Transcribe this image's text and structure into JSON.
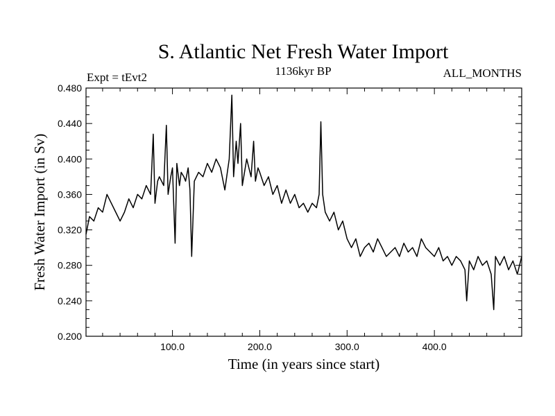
{
  "chart_data": {
    "type": "line",
    "title": "S. Atlantic Net Fresh Water Import",
    "subtitle_left": "Expt = tEvt2",
    "subtitle_center": "1136kyr BP",
    "subtitle_right": "ALL_MONTHS",
    "xlabel": "Time (in years since start)",
    "ylabel": "Fresh Water Import (in Sv)",
    "xlim": [
      1,
      500
    ],
    "ylim": [
      0.2,
      0.48
    ],
    "xticks": [
      100,
      200,
      300,
      400
    ],
    "xtick_labels": [
      "100.0",
      "200.0",
      "300.0",
      "400.0"
    ],
    "yticks": [
      0.2,
      0.24,
      0.28,
      0.32,
      0.36,
      0.4,
      0.44,
      0.48
    ],
    "ytick_labels": [
      "0.200",
      "0.240",
      "0.280",
      "0.320",
      "0.360",
      "0.400",
      "0.440",
      "0.480"
    ],
    "grid": false,
    "series": [
      {
        "name": "Fresh Water Import",
        "x": [
          1,
          5,
          10,
          15,
          20,
          25,
          30,
          35,
          40,
          45,
          50,
          55,
          60,
          65,
          70,
          75,
          78,
          80,
          83,
          85,
          90,
          93,
          95,
          98,
          100,
          103,
          105,
          108,
          110,
          113,
          115,
          118,
          120,
          122,
          125,
          130,
          135,
          140,
          145,
          150,
          155,
          160,
          165,
          168,
          170,
          173,
          175,
          178,
          180,
          185,
          190,
          193,
          195,
          198,
          200,
          205,
          210,
          215,
          220,
          225,
          230,
          235,
          240,
          245,
          250,
          255,
          260,
          265,
          268,
          270,
          272,
          275,
          280,
          285,
          290,
          295,
          300,
          305,
          310,
          315,
          320,
          325,
          330,
          335,
          340,
          345,
          350,
          355,
          360,
          365,
          370,
          375,
          380,
          385,
          390,
          395,
          400,
          405,
          410,
          415,
          420,
          425,
          430,
          435,
          437,
          440,
          445,
          450,
          455,
          460,
          465,
          468,
          470,
          475,
          480,
          485,
          490,
          495,
          500
        ],
        "values": [
          0.315,
          0.335,
          0.33,
          0.345,
          0.34,
          0.36,
          0.35,
          0.34,
          0.33,
          0.34,
          0.355,
          0.345,
          0.36,
          0.355,
          0.37,
          0.36,
          0.428,
          0.35,
          0.375,
          0.38,
          0.37,
          0.438,
          0.36,
          0.38,
          0.39,
          0.305,
          0.395,
          0.37,
          0.385,
          0.38,
          0.375,
          0.39,
          0.365,
          0.29,
          0.375,
          0.385,
          0.38,
          0.395,
          0.385,
          0.4,
          0.39,
          0.365,
          0.4,
          0.472,
          0.38,
          0.42,
          0.395,
          0.44,
          0.37,
          0.4,
          0.38,
          0.42,
          0.375,
          0.39,
          0.385,
          0.37,
          0.38,
          0.36,
          0.37,
          0.35,
          0.365,
          0.35,
          0.36,
          0.345,
          0.35,
          0.34,
          0.35,
          0.345,
          0.36,
          0.442,
          0.36,
          0.34,
          0.33,
          0.34,
          0.32,
          0.33,
          0.31,
          0.3,
          0.31,
          0.29,
          0.3,
          0.305,
          0.295,
          0.31,
          0.3,
          0.29,
          0.295,
          0.3,
          0.29,
          0.305,
          0.295,
          0.3,
          0.29,
          0.31,
          0.3,
          0.295,
          0.29,
          0.3,
          0.285,
          0.29,
          0.28,
          0.29,
          0.285,
          0.275,
          0.24,
          0.285,
          0.275,
          0.29,
          0.28,
          0.285,
          0.27,
          0.23,
          0.29,
          0.28,
          0.29,
          0.275,
          0.285,
          0.27,
          0.29
        ]
      }
    ]
  }
}
